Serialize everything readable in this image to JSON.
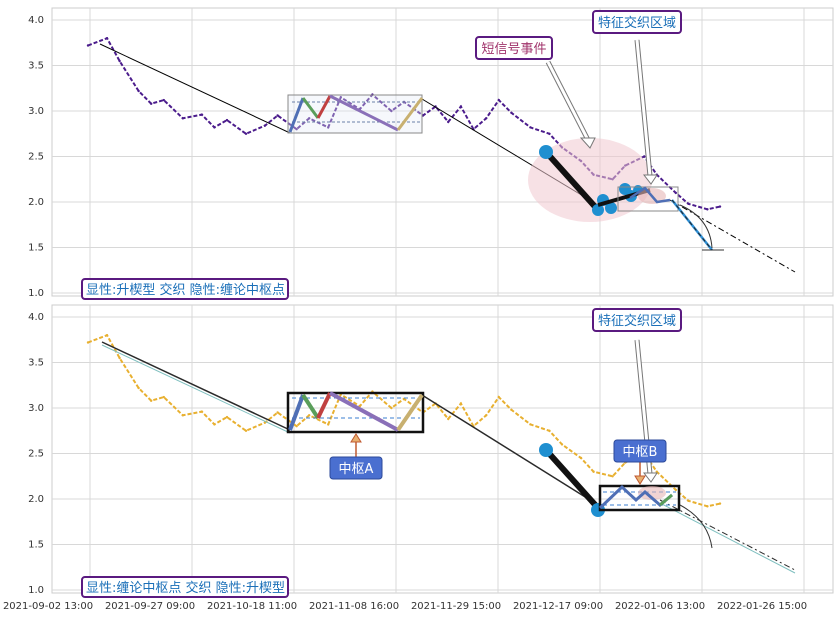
{
  "chart_data": {
    "type": "line",
    "x_dates": [
      "2021-09-02 13:00",
      "2021-09-27 09:00",
      "2021-10-18 11:00",
      "2021-11-08 16:00",
      "2021-11-29 15:00",
      "2021-12-17 09:00",
      "2022-01-06 13:00",
      "2022-01-26 15:00"
    ],
    "panels": [
      {
        "ylim": [
          1.0,
          4.0
        ],
        "yticks": [
          "1.0",
          "1.5",
          "2.0",
          "2.5",
          "3.0",
          "3.5",
          "4.0"
        ],
        "series_color": "#4b1c8c",
        "trend_color": "#000000",
        "label": "显性:升楔型 交织 隐性:缠论中枢点",
        "annotations": [
          {
            "text": "短信号事件",
            "color": "#a0336b"
          },
          {
            "text": "特征交织区域",
            "color": "#1a6fb8"
          }
        ]
      },
      {
        "ylim": [
          1.0,
          4.0
        ],
        "yticks": [
          "1.0",
          "1.5",
          "2.0",
          "2.5",
          "3.0",
          "3.5",
          "4.0"
        ],
        "series_color": "#e8b030",
        "trend_color": "#2a2a2a",
        "label": "显性:缠论中枢点 交织 隐性:升楔型",
        "annotations": [
          {
            "text": "特征交织区域",
            "color": "#1a6fb8"
          },
          {
            "text": "中枢A",
            "color": "#ffffff"
          },
          {
            "text": "中枢B",
            "color": "#ffffff"
          }
        ]
      }
    ],
    "series": [
      {
        "x": [
          0.0,
          0.03,
          0.05,
          0.08,
          0.1,
          0.12,
          0.15,
          0.18,
          0.2,
          0.22,
          0.25,
          0.28,
          0.3,
          0.33,
          0.35,
          0.38,
          0.4,
          0.43,
          0.45,
          0.48,
          0.5,
          0.53,
          0.55,
          0.57,
          0.59,
          0.61,
          0.63,
          0.65,
          0.67,
          0.7,
          0.73,
          0.75,
          0.78,
          0.8,
          0.83,
          0.85,
          0.88,
          0.9,
          0.93,
          0.95,
          0.98,
          1.0
        ],
        "y": [
          3.72,
          3.8,
          3.55,
          3.22,
          3.08,
          3.12,
          2.92,
          2.96,
          2.82,
          2.9,
          2.75,
          2.84,
          2.95,
          2.8,
          2.92,
          2.82,
          3.15,
          3.02,
          3.18,
          3.0,
          3.1,
          2.95,
          3.05,
          2.88,
          3.05,
          2.8,
          2.92,
          3.12,
          2.98,
          2.82,
          2.75,
          2.6,
          2.45,
          2.3,
          2.25,
          2.4,
          2.5,
          2.3,
          2.1,
          1.98,
          1.92,
          1.95
        ]
      }
    ]
  }
}
